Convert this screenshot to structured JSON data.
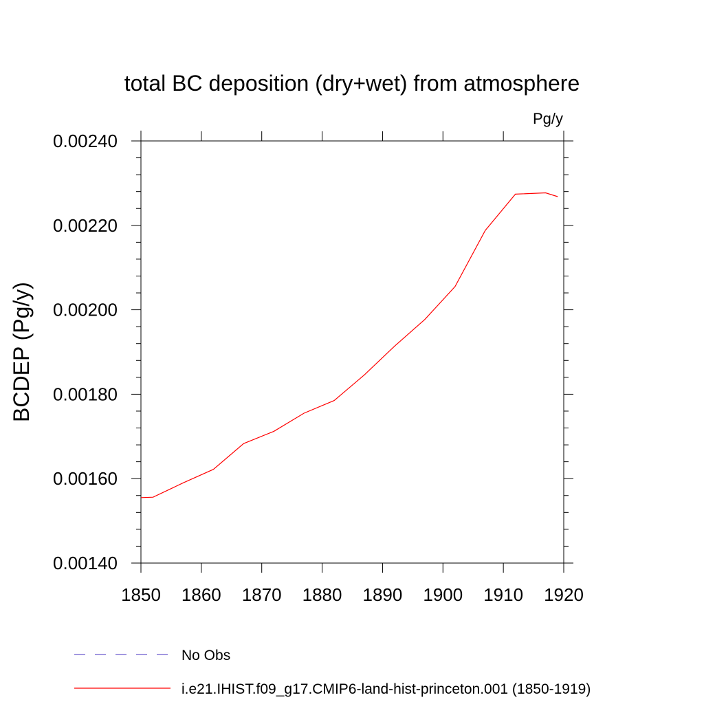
{
  "chart_data": {
    "type": "line",
    "title": "total BC deposition (dry+wet) from atmosphere",
    "units_label": "Pg/y",
    "ylabel": "BCDEP  (Pg/y)",
    "xlabel": "",
    "xlim": [
      1850,
      1920
    ],
    "ylim": [
      0.0014,
      0.0024
    ],
    "x_ticks": [
      1850,
      1860,
      1870,
      1880,
      1890,
      1900,
      1910,
      1920
    ],
    "x_tick_labels": [
      "1850",
      "1860",
      "1870",
      "1880",
      "1890",
      "1900",
      "1910",
      "1920"
    ],
    "y_ticks": [
      0.0014,
      0.0016,
      0.0018,
      0.002,
      0.0022,
      0.0024
    ],
    "y_tick_labels": [
      "0.00140",
      "0.00160",
      "0.00180",
      "0.00200",
      "0.00220",
      "0.00240"
    ],
    "grid": false,
    "legend_position": "bottom",
    "series": [
      {
        "name": "No Obs",
        "color": "#6a5acd",
        "style": "dashed",
        "x": [],
        "y": []
      },
      {
        "name": "i.e21.IHIST.f09_g17.CMIP6-land-hist-princeton.001 (1850-1919)",
        "color": "#ff0000",
        "style": "solid",
        "x": [
          1850,
          1852,
          1857,
          1862,
          1867,
          1872,
          1877,
          1882,
          1887,
          1892,
          1897,
          1902,
          1907,
          1912,
          1917,
          1919
        ],
        "y": [
          0.001555,
          0.001556,
          0.00159,
          0.001622,
          0.001683,
          0.001712,
          0.001755,
          0.001785,
          0.001846,
          0.001914,
          0.001977,
          0.002055,
          0.002188,
          0.002274,
          0.002277,
          0.002268
        ]
      }
    ]
  }
}
